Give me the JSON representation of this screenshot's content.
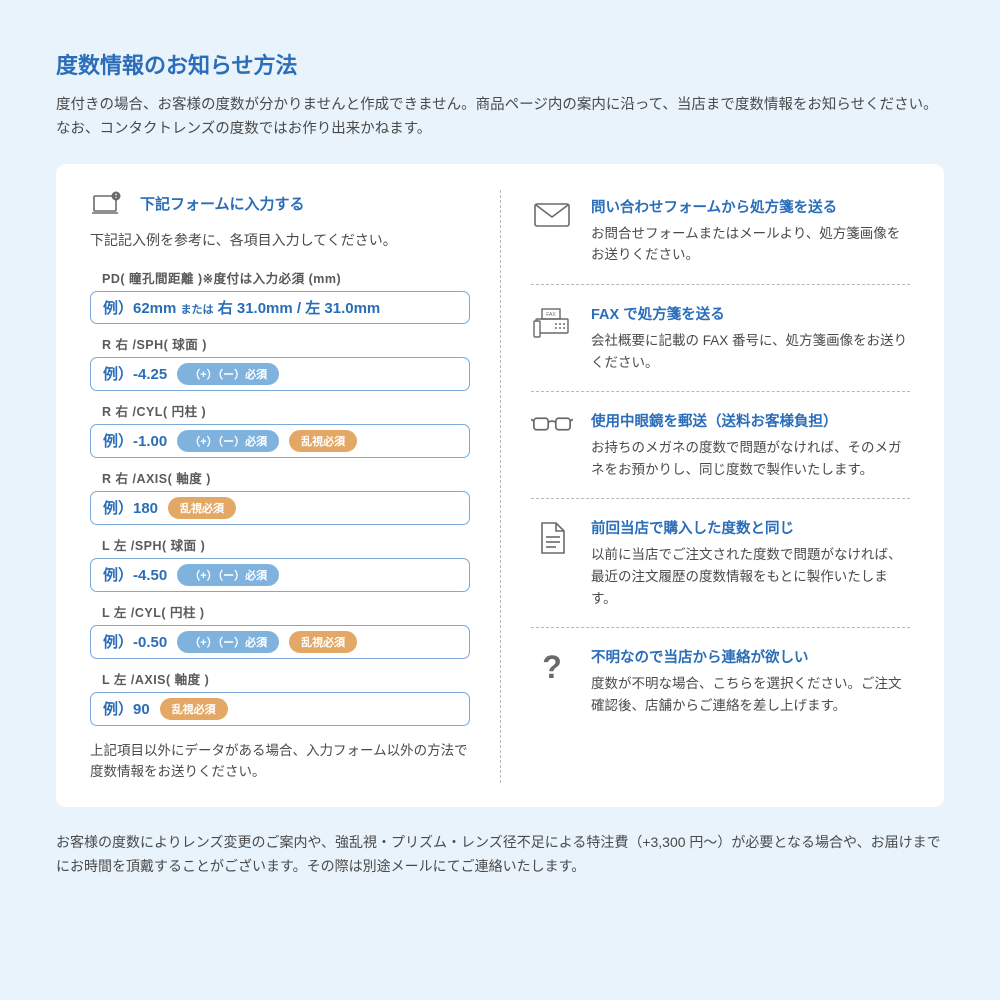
{
  "header": {
    "title": "度数情報のお知らせ方法",
    "intro": "度付きの場合、お客様の度数が分かりませんと作成できません。商品ページ内の案内に沿って、当店まで度数情報をお知らせください。なお、コンタクトレンズの度数ではお作り出来かねます。"
  },
  "form": {
    "header_title": "下記フォームに入力する",
    "header_subtext": "下記記入例を参考に、各項目入力してください。",
    "fields": [
      {
        "label": "PD( 瞳孔間距離 )※度付は入力必須 (mm)",
        "example": "例）62mm または 右 31.0mm / 左 31.0mm",
        "pills": []
      },
      {
        "label": "R 右 /SPH( 球面 )",
        "example": "例）-4.25",
        "pills": [
          {
            "text": "（+）（ー）必須",
            "color": "blue"
          }
        ]
      },
      {
        "label": "R 右 /CYL( 円柱 )",
        "example": "例）-1.00",
        "pills": [
          {
            "text": "（+）（ー）必須",
            "color": "blue"
          },
          {
            "text": "乱視必須",
            "color": "orange"
          }
        ]
      },
      {
        "label": "R 右 /AXIS( 軸度 )",
        "example": "例）180",
        "pills": [
          {
            "text": "乱視必須",
            "color": "orange"
          }
        ]
      },
      {
        "label": "L 左 /SPH( 球面 )",
        "example": "例）-4.50",
        "pills": [
          {
            "text": "（+）（ー）必須",
            "color": "blue"
          }
        ]
      },
      {
        "label": "L 左 /CYL( 円柱 )",
        "example": "例）-0.50",
        "pills": [
          {
            "text": "（+）（ー）必須",
            "color": "blue"
          },
          {
            "text": "乱視必須",
            "color": "orange"
          }
        ]
      },
      {
        "label": "L 左 /AXIS( 軸度 )",
        "example": "例）90",
        "pills": [
          {
            "text": "乱視必須",
            "color": "orange"
          }
        ]
      }
    ],
    "note": "上記項目以外にデータがある場合、入力フォーム以外の方法で度数情報をお送りください。"
  },
  "options": [
    {
      "icon": "envelope",
      "title": "問い合わせフォームから処方箋を送る",
      "desc": "お問合せフォームまたはメールより、処方箋画像をお送りください。"
    },
    {
      "icon": "fax",
      "title": "FAX で処方箋を送る",
      "desc": "会社概要に記載の FAX 番号に、処方箋画像をお送りください。"
    },
    {
      "icon": "glasses",
      "title": "使用中眼鏡を郵送（送料お客様負担）",
      "desc": "お持ちのメガネの度数で問題がなければ、そのメガネをお預かりし、同じ度数で製作いたします。"
    },
    {
      "icon": "document",
      "title": "前回当店で購入した度数と同じ",
      "desc": "以前に当店でご注文された度数で問題がなければ、最近の注文履歴の度数情報をもとに製作いたします。"
    },
    {
      "icon": "question",
      "title": "不明なので当店から連絡が欲しい",
      "desc": "度数が不明な場合、こちらを選択ください。ご注文確認後、店舗からご連絡を差し上げます。"
    }
  ],
  "footer": "お客様の度数によりレンズ変更のご案内や、強乱視・プリズム・レンズ径不足による特注費（+3,300 円〜）が必要となる場合や、お届けまでにお時間を頂戴することがございます。その際は別途メールにてご連絡いたします。",
  "colors": {
    "accent": "#2a6db8",
    "pill_blue": "#7fb3de",
    "pill_orange": "#e4a866",
    "border": "#7ba8d4",
    "bg": "#e8f3fb",
    "icon": "#6a6a6a"
  }
}
